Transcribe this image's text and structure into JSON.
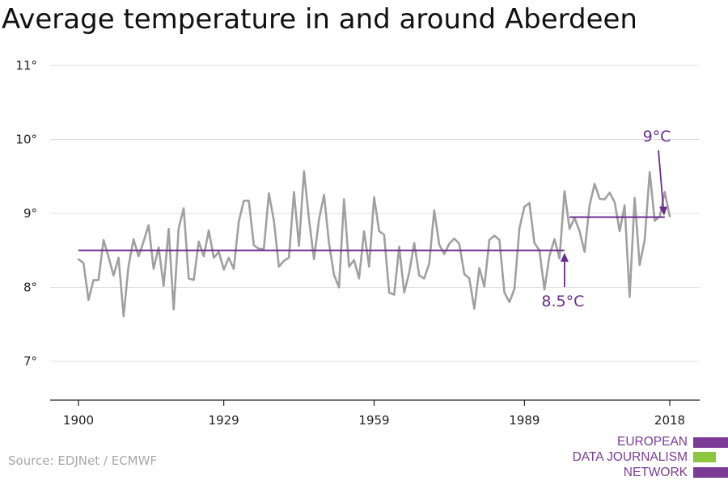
{
  "title": "Average temperature in and around Aberdeen",
  "source": "Source: EDJNet / ECMWF",
  "logo": {
    "lines": [
      "EUROPEAN",
      "DATA JOURNALISM",
      "NETWORK"
    ]
  },
  "colors": {
    "series": "#a0a0a0",
    "accent": "#6a2c91",
    "grid": "#dcdcdc",
    "logo_purple": "#7a3b96",
    "logo_green": "#8dc63f"
  },
  "chart_data": {
    "type": "line",
    "title": "Average temperature in and around Aberdeen",
    "xlabel": "",
    "ylabel": "",
    "xlim": [
      1900,
      2018
    ],
    "ylim": [
      6.5,
      11.2
    ],
    "grid": true,
    "y_ticks": [
      7,
      8,
      9,
      10,
      11
    ],
    "y_tick_labels": [
      "7°",
      "8°",
      "9°",
      "10°",
      "11°"
    ],
    "x_ticks": [
      1900,
      1929,
      1959,
      1989,
      2018
    ],
    "x_tick_labels": [
      "1900",
      "1929",
      "1959",
      "1989",
      "2018"
    ],
    "series": [
      {
        "x": [
          1900,
          1901,
          1902,
          1903,
          1904,
          1905,
          1906,
          1907,
          1908,
          1909,
          1910,
          1911,
          1912,
          1913,
          1914,
          1915,
          1916,
          1917,
          1918,
          1919,
          1920,
          1921,
          1922,
          1923,
          1924,
          1925,
          1926,
          1927,
          1928,
          1929,
          1930,
          1931,
          1932,
          1933,
          1934,
          1935,
          1936,
          1937,
          1938,
          1939,
          1940,
          1941,
          1942,
          1943,
          1944,
          1945,
          1946,
          1947,
          1948,
          1949,
          1950,
          1951,
          1952,
          1953,
          1954,
          1955,
          1956,
          1957,
          1958,
          1959,
          1960,
          1961,
          1962,
          1963,
          1964,
          1965,
          1966,
          1967,
          1968,
          1969,
          1970,
          1971,
          1972,
          1973,
          1974,
          1975,
          1976,
          1977,
          1978,
          1979,
          1980,
          1981,
          1982,
          1983,
          1984,
          1985,
          1986,
          1987,
          1988,
          1989,
          1990,
          1991,
          1992,
          1993,
          1994,
          1995,
          1996,
          1997,
          1998,
          1999,
          2000,
          2001,
          2002,
          2003,
          2004,
          2005,
          2006,
          2007,
          2008,
          2009,
          2010,
          2011,
          2012,
          2013,
          2014,
          2015,
          2016,
          2017,
          2018
        ],
        "values": [
          8.38,
          8.33,
          7.83,
          8.1,
          8.1,
          8.64,
          8.41,
          8.16,
          8.4,
          7.61,
          8.29,
          8.65,
          8.42,
          8.62,
          8.84,
          8.25,
          8.54,
          8.02,
          8.79,
          7.7,
          8.8,
          9.07,
          8.12,
          8.1,
          8.62,
          8.42,
          8.77,
          8.4,
          8.48,
          8.24,
          8.4,
          8.25,
          8.89,
          9.17,
          9.17,
          8.57,
          8.52,
          8.52,
          9.27,
          8.9,
          8.28,
          8.36,
          8.4,
          9.29,
          8.56,
          9.57,
          8.92,
          8.38,
          8.92,
          9.25,
          8.6,
          8.17,
          8.0,
          9.19,
          8.28,
          8.37,
          8.12,
          8.76,
          8.28,
          9.22,
          8.76,
          8.71,
          7.93,
          7.9,
          8.55,
          7.93,
          8.2,
          8.6,
          8.16,
          8.12,
          8.32,
          9.04,
          8.58,
          8.45,
          8.59,
          8.66,
          8.59,
          8.18,
          8.12,
          7.71,
          8.26,
          8.01,
          8.64,
          8.7,
          8.64,
          7.93,
          7.8,
          7.98,
          8.8,
          9.09,
          9.14,
          8.6,
          8.5,
          7.97,
          8.43,
          8.65,
          8.39,
          9.3,
          8.79,
          8.94,
          8.76,
          8.48,
          9.11,
          9.4,
          9.2,
          9.19,
          9.28,
          9.15,
          8.76,
          9.11,
          7.87,
          9.21,
          8.3,
          8.64,
          9.56,
          8.9,
          8.96,
          9.29,
          8.96
        ]
      }
    ],
    "annotations": [
      {
        "label": "8.5°C",
        "value": 8.5,
        "x_from": 1900,
        "x_to": 1997
      },
      {
        "label": "9°C",
        "value": 8.95,
        "x_from": 1998,
        "x_to": 2017
      }
    ]
  }
}
